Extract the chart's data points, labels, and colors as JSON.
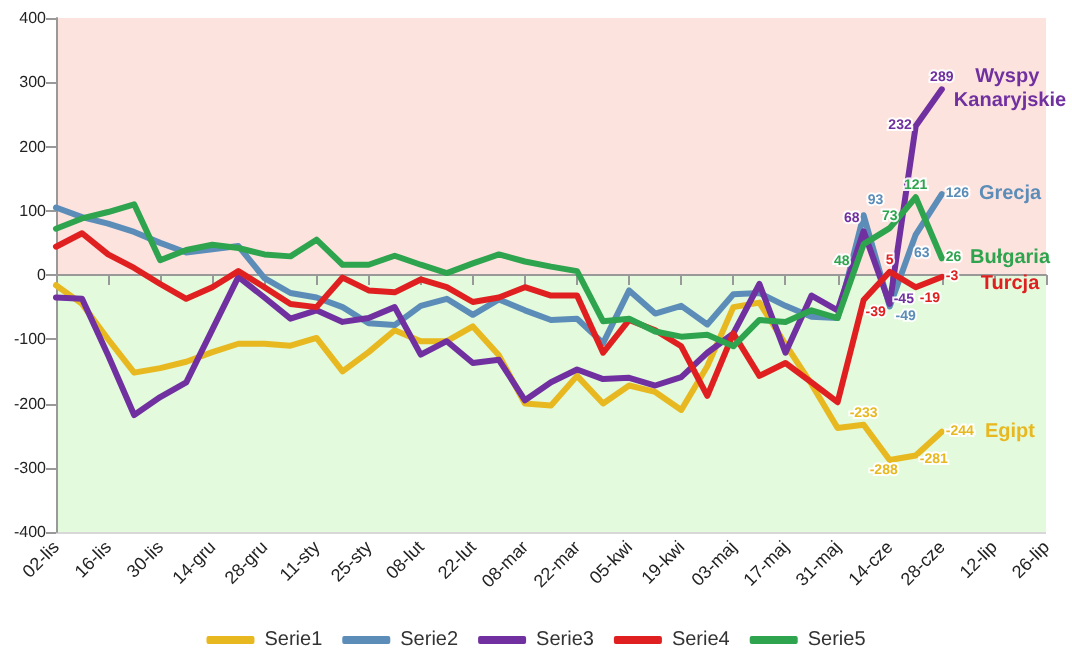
{
  "chart_data": {
    "type": "line",
    "categories": [
      "02-lis",
      null,
      "16-lis",
      null,
      "30-lis",
      null,
      "14-gru",
      null,
      "28-gru",
      null,
      "11-sty",
      null,
      "25-sty",
      null,
      "08-lut",
      null,
      "22-lut",
      null,
      "08-mar",
      null,
      "22-mar",
      null,
      "05-kwi",
      null,
      "19-kwi",
      null,
      "03-maj",
      null,
      "17-maj",
      null,
      "31-maj",
      null,
      "14-cze",
      null,
      "28-cze",
      null,
      "12-lip",
      null,
      "26-lip"
    ],
    "series": [
      {
        "name": "Serie1",
        "color": "#e8b820",
        "values": [
          -16,
          -45,
          -100,
          -152,
          -145,
          -135,
          -120,
          -107,
          -107,
          -110,
          -98,
          -150,
          -120,
          -86,
          -103,
          -103,
          -80,
          -125,
          -200,
          -203,
          -157,
          -200,
          -172,
          -182,
          -210,
          -142,
          -50,
          -43,
          -108,
          -170,
          -238,
          -233,
          -288,
          -281,
          -244,
          null,
          null,
          null,
          null
        ],
        "value_labels": [
          null,
          null,
          null,
          null,
          null,
          null,
          null,
          null,
          null,
          null,
          null,
          null,
          null,
          null,
          null,
          null,
          null,
          null,
          null,
          null,
          null,
          null,
          null,
          null,
          null,
          null,
          null,
          null,
          null,
          null,
          null,
          "-233",
          "-288",
          "-281",
          "-244",
          null,
          null,
          null,
          null
        ]
      },
      {
        "name": "Serie2",
        "color": "#5b8db8",
        "values": [
          105,
          90,
          80,
          67,
          50,
          35,
          40,
          45,
          -5,
          -28,
          -35,
          -50,
          -75,
          -78,
          -48,
          -37,
          -62,
          -38,
          -55,
          -70,
          -68,
          -106,
          -24,
          -60,
          -48,
          -77,
          -30,
          -28,
          -48,
          -65,
          -67,
          93,
          -49,
          63,
          126,
          null,
          null,
          null,
          null
        ],
        "value_labels": [
          null,
          null,
          null,
          null,
          null,
          null,
          null,
          null,
          null,
          null,
          null,
          null,
          null,
          null,
          null,
          null,
          null,
          null,
          null,
          null,
          null,
          null,
          null,
          null,
          null,
          null,
          null,
          null,
          null,
          null,
          null,
          "93",
          "-49",
          "63",
          "126",
          null,
          null,
          null,
          null
        ]
      },
      {
        "name": "Serie3",
        "color": "#7030a0",
        "values": [
          -35,
          -37,
          -125,
          -218,
          -190,
          -167,
          -85,
          -3,
          -35,
          -68,
          -55,
          -73,
          -67,
          -50,
          -124,
          -103,
          -137,
          -132,
          -195,
          -167,
          -147,
          -162,
          -160,
          -172,
          -159,
          -121,
          -91,
          -14,
          -121,
          -32,
          -55,
          68,
          -45,
          232,
          289,
          null,
          null,
          null,
          null
        ],
        "value_labels": [
          null,
          null,
          null,
          null,
          null,
          null,
          null,
          null,
          null,
          null,
          null,
          null,
          null,
          null,
          null,
          null,
          null,
          null,
          null,
          null,
          null,
          null,
          null,
          null,
          null,
          null,
          null,
          null,
          null,
          null,
          null,
          "68",
          "-45",
          "232",
          "289",
          null,
          null,
          null,
          null
        ]
      },
      {
        "name": "Serie4",
        "color": "#e02020",
        "values": [
          44,
          65,
          32,
          11,
          -14,
          -37,
          -19,
          6,
          -19,
          -45,
          -50,
          -4,
          -24,
          -27,
          -7,
          -19,
          -42,
          -35,
          -19,
          -32,
          -32,
          -121,
          -70,
          -86,
          -111,
          -188,
          -91,
          -157,
          -137,
          -167,
          -198,
          -39,
          5,
          -19,
          -3,
          null,
          null,
          null,
          null
        ],
        "value_labels": [
          null,
          null,
          null,
          null,
          null,
          null,
          null,
          null,
          null,
          null,
          null,
          null,
          null,
          null,
          null,
          null,
          null,
          null,
          null,
          null,
          null,
          null,
          null,
          null,
          null,
          null,
          null,
          null,
          null,
          null,
          null,
          "-39",
          "5",
          "-19",
          "-3",
          null,
          null,
          null,
          null
        ]
      },
      {
        "name": "Serie5",
        "color": "#2ea44f",
        "values": [
          72,
          88,
          98,
          110,
          23,
          39,
          47,
          42,
          32,
          29,
          55,
          16,
          16,
          30,
          16,
          3,
          18,
          32,
          21,
          13,
          6,
          -72,
          -68,
          -88,
          -96,
          -93,
          -111,
          -70,
          -73,
          -55,
          -67,
          48,
          73,
          121,
          26,
          null,
          null,
          null,
          null
        ],
        "value_labels": [
          null,
          null,
          null,
          null,
          null,
          null,
          null,
          null,
          null,
          null,
          null,
          null,
          null,
          null,
          null,
          null,
          null,
          null,
          null,
          null,
          null,
          null,
          null,
          null,
          null,
          null,
          null,
          null,
          null,
          null,
          null,
          "48",
          "73",
          "121",
          "26",
          null,
          null,
          null,
          null
        ]
      }
    ],
    "annotations": [
      "Egipt",
      "Grecja",
      "Wyspy Kanaryjskie",
      "Turcja",
      "Bułgaria"
    ],
    "bands": [
      {
        "axis": "y",
        "from": 0,
        "to": 400,
        "color": "#fde3de"
      },
      {
        "axis": "y",
        "from": -400,
        "to": 0,
        "color": "#e3fadc"
      }
    ],
    "ylim": [
      -400,
      400
    ],
    "yticks": [
      -400,
      -300,
      -200,
      -100,
      0,
      100,
      200,
      300,
      400
    ],
    "grid": "y",
    "legend": "bottom",
    "marker": "none",
    "line_style": "solid"
  }
}
